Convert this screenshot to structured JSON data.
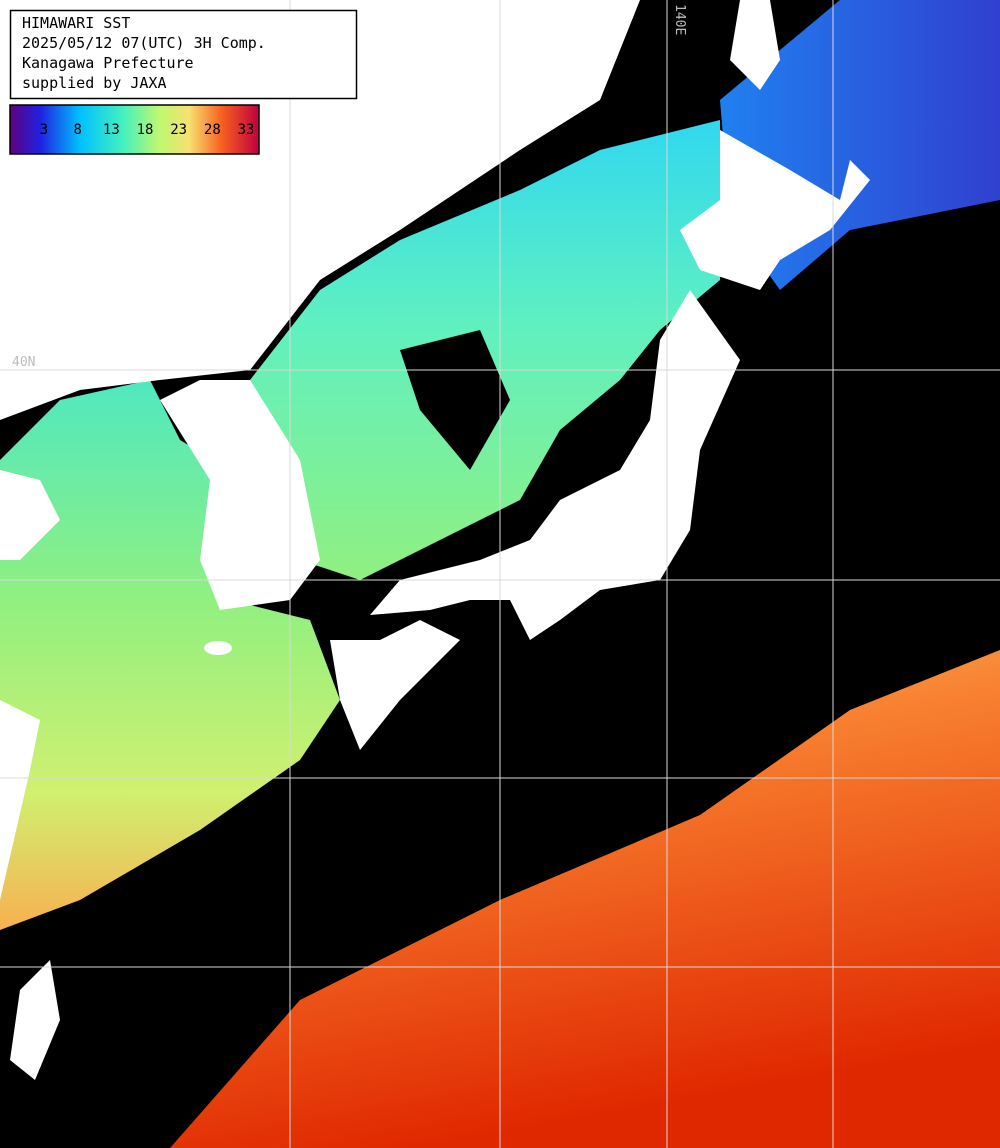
{
  "header": {
    "lines": [
      "HIMAWARI SST",
      "2025/05/12 07(UTC) 3H Comp.",
      "Kanagawa Prefecture",
      "supplied by JAXA"
    ]
  },
  "colorbar": {
    "ticks": [
      3,
      8,
      13,
      18,
      23,
      28,
      33
    ]
  },
  "grid_labels": {
    "lon": "140E",
    "lat": "40N"
  }
}
